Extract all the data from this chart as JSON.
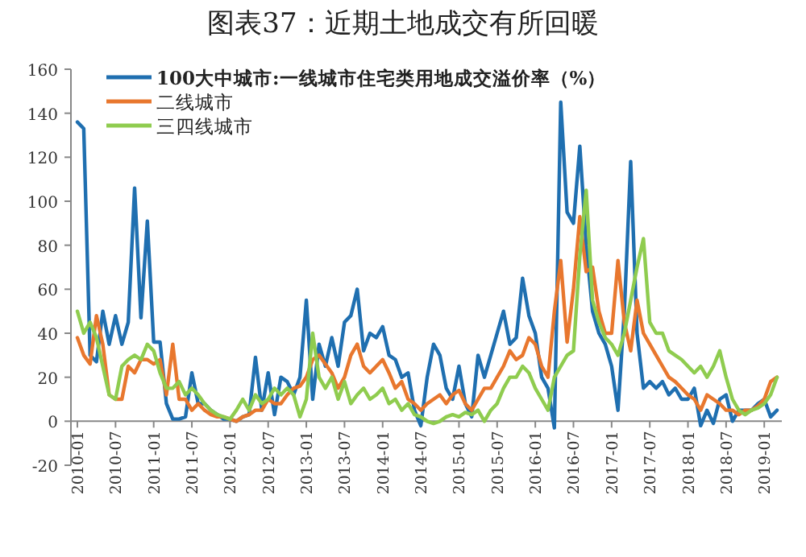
{
  "chart_data": {
    "type": "line",
    "title": "图表37：近期土地成交有所回暖",
    "categories": [
      "2010-01",
      null,
      null,
      null,
      null,
      null,
      "2010-07",
      null,
      null,
      null,
      null,
      null,
      "2011-01",
      null,
      null,
      null,
      null,
      null,
      "2011-07",
      null,
      null,
      null,
      null,
      null,
      "2012-01",
      null,
      null,
      null,
      null,
      null,
      "2012-07",
      null,
      null,
      null,
      null,
      null,
      "2013-01",
      null,
      null,
      null,
      null,
      null,
      "2013-07",
      null,
      null,
      null,
      null,
      null,
      "2014-01",
      null,
      null,
      null,
      null,
      null,
      "2014-07",
      null,
      null,
      null,
      null,
      null,
      "2015-01",
      null,
      null,
      null,
      null,
      null,
      "2015-07",
      null,
      null,
      null,
      null,
      null,
      "2016-01",
      null,
      null,
      null,
      null,
      null,
      "2016-07",
      null,
      null,
      null,
      null,
      null,
      "2017-01",
      null,
      null,
      null,
      null,
      null,
      "2017-07",
      null,
      null,
      null,
      null,
      null,
      "2018-01",
      null,
      null,
      null,
      null,
      null,
      "2018-07",
      null,
      null,
      null,
      null,
      null,
      "2019-01",
      null,
      null
    ],
    "series": [
      {
        "name": "100大中城市:一线城市住宅类用地成交溢价率（%）",
        "color": "#1f6fb0",
        "values": [
          136,
          133,
          30,
          27,
          50,
          35,
          48,
          35,
          45,
          106,
          47,
          91,
          36,
          36,
          8,
          1,
          1,
          2,
          22,
          8,
          8,
          5,
          3,
          1,
          1,
          0,
          2,
          3,
          29,
          5,
          22,
          3,
          20,
          18,
          12,
          20,
          55,
          10,
          35,
          25,
          38,
          25,
          45,
          48,
          60,
          32,
          40,
          38,
          43,
          30,
          28,
          20,
          22,
          5,
          -2,
          20,
          35,
          30,
          15,
          10,
          25,
          8,
          2,
          30,
          20,
          30,
          40,
          50,
          35,
          38,
          65,
          48,
          40,
          20,
          15,
          -3,
          145,
          95,
          90,
          125,
          80,
          50,
          40,
          35,
          25,
          5,
          50,
          118,
          40,
          15,
          18,
          15,
          18,
          12,
          15,
          10,
          10,
          15,
          -2,
          5,
          -1,
          10,
          12,
          0,
          5,
          5,
          5,
          8,
          10,
          2,
          5
        ]
      },
      {
        "name": "二线城市",
        "color": "#e8772e",
        "values": [
          38,
          30,
          26,
          48,
          35,
          12,
          10,
          10,
          25,
          22,
          28,
          28,
          26,
          28,
          12,
          35,
          10,
          10,
          5,
          8,
          5,
          3,
          2,
          2,
          1,
          0,
          2,
          3,
          5,
          5,
          10,
          8,
          8,
          12,
          15,
          16,
          20,
          28,
          30,
          26,
          22,
          15,
          20,
          30,
          35,
          25,
          22,
          25,
          28,
          22,
          15,
          18,
          10,
          8,
          5,
          8,
          10,
          12,
          8,
          12,
          14,
          8,
          5,
          10,
          15,
          15,
          20,
          25,
          32,
          28,
          30,
          38,
          35,
          25,
          20,
          50,
          73,
          36,
          60,
          93,
          68,
          70,
          50,
          40,
          40,
          73,
          45,
          32,
          55,
          40,
          35,
          30,
          25,
          20,
          18,
          15,
          12,
          10,
          5,
          12,
          10,
          8,
          5,
          5,
          3,
          5,
          5,
          7,
          10,
          18,
          20
        ]
      },
      {
        "name": "三四线城市",
        "color": "#8fcc4f",
        "values": [
          50,
          40,
          45,
          38,
          25,
          12,
          10,
          25,
          28,
          30,
          28,
          35,
          32,
          22,
          15,
          15,
          18,
          12,
          15,
          12,
          8,
          5,
          3,
          2,
          1,
          5,
          10,
          5,
          12,
          8,
          10,
          15,
          12,
          15,
          12,
          2,
          10,
          40,
          20,
          15,
          20,
          10,
          18,
          8,
          12,
          15,
          10,
          12,
          15,
          8,
          10,
          5,
          8,
          3,
          2,
          0,
          -1,
          0,
          2,
          3,
          2,
          4,
          3,
          5,
          0,
          5,
          8,
          15,
          20,
          20,
          25,
          22,
          15,
          10,
          5,
          20,
          25,
          30,
          32,
          75,
          105,
          55,
          45,
          38,
          35,
          30,
          40,
          55,
          70,
          83,
          45,
          40,
          40,
          32,
          30,
          28,
          25,
          22,
          25,
          20,
          25,
          32,
          20,
          10,
          5,
          3,
          5,
          6,
          8,
          12,
          20
        ]
      }
    ],
    "ylim": [
      -20,
      160
    ],
    "yticks": [
      -20,
      0,
      20,
      40,
      60,
      80,
      100,
      120,
      140,
      160
    ],
    "grid": false,
    "legend": "top left",
    "line_style": "solid",
    "marker": "none"
  }
}
